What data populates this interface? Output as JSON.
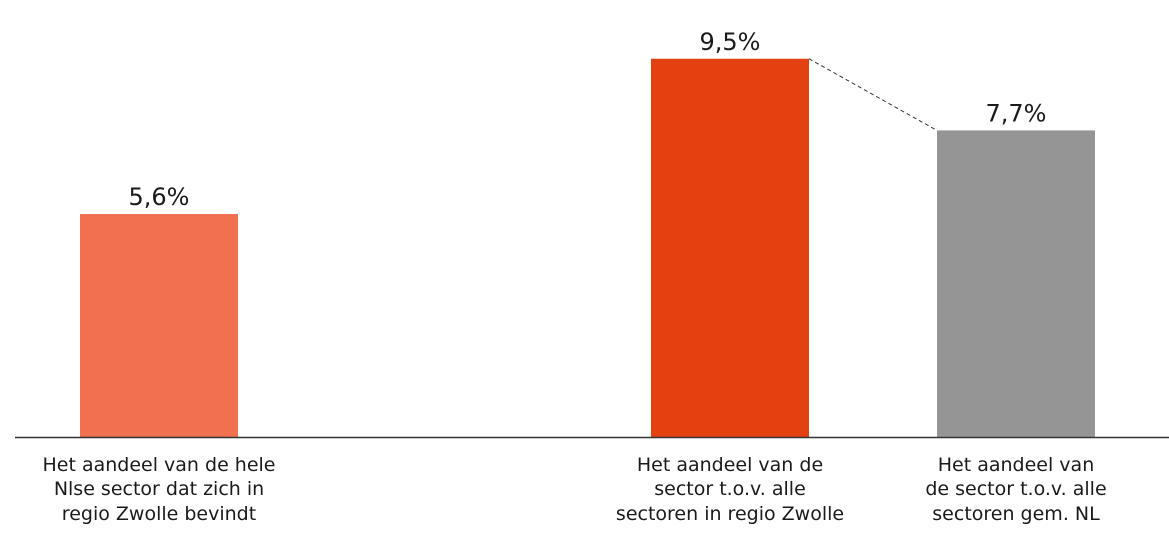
{
  "chart_data": {
    "type": "bar",
    "categories": [
      [
        "Het aandeel van de hele",
        "Nlse sector dat zich in",
        "regio Zwolle bevindt"
      ],
      [
        "Het aandeel van de",
        "sector t.o.v. alle",
        "sectoren in regio Zwolle"
      ],
      [
        "Het aandeel van",
        "de sector t.o.v. alle",
        "sectoren gem. NL"
      ]
    ],
    "values": [
      5.6,
      9.5,
      7.7
    ],
    "value_labels": [
      "5,6%",
      "9,5%",
      "7,7%"
    ],
    "colors": [
      "#F07050",
      "#E34210",
      "#959595"
    ],
    "ylim": [
      0,
      10.8
    ],
    "connector": {
      "from": 1,
      "to": 2,
      "style": "dashed"
    },
    "grid": false,
    "legend": "none",
    "title": "",
    "xlabel": "",
    "ylabel": ""
  }
}
